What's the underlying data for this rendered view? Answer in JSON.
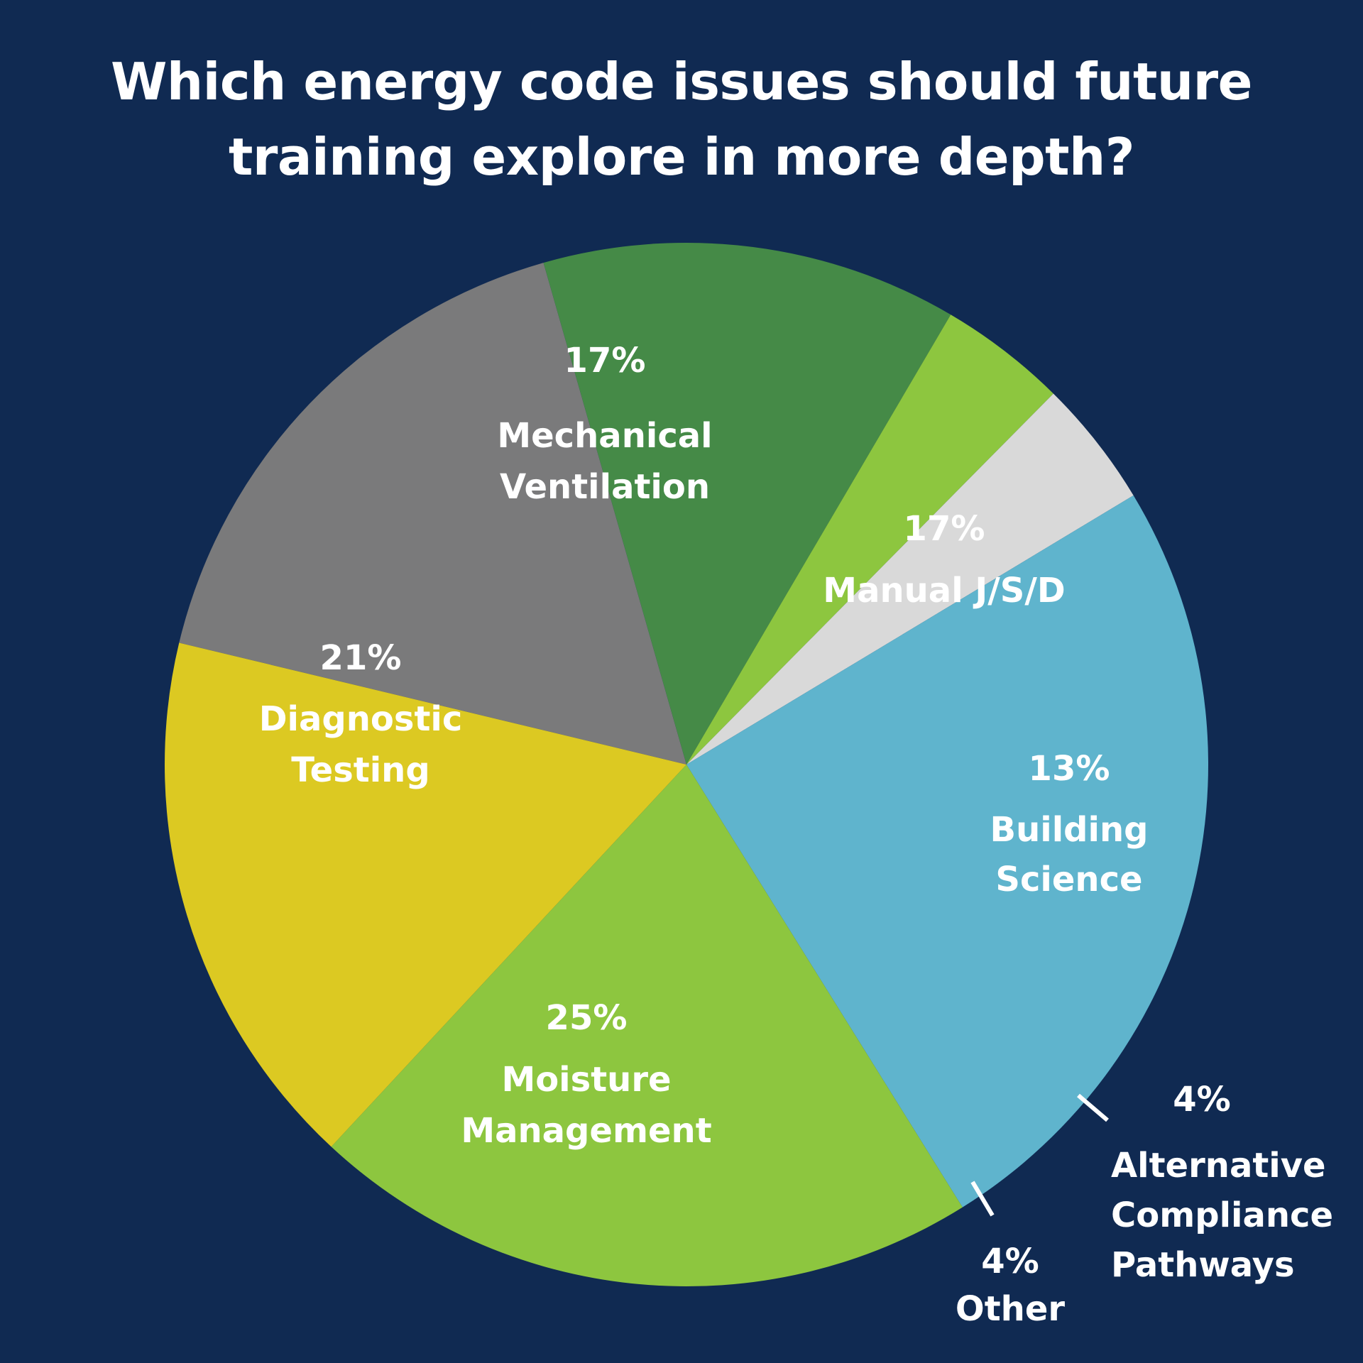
{
  "chart_data": {
    "type": "pie",
    "title_lines": [
      "Which energy code issues should future",
      "training explore in more depth?"
    ],
    "slices": [
      {
        "pct_label": "17%",
        "name_lines": [
          "Manual J/S/D"
        ],
        "value": 17,
        "color": "#7a7a7b"
      },
      {
        "pct_label": "13%",
        "name_lines": [
          "Building",
          "Science"
        ],
        "value": 13,
        "color": "#458a47"
      },
      {
        "pct_label": "4%",
        "name_lines": [
          "Alternative",
          "Compliance",
          "Pathways"
        ],
        "value": 4,
        "color": "#8dc63f"
      },
      {
        "pct_label": "4%",
        "name_lines": [
          "Other"
        ],
        "value": 4,
        "color": "#d9d9d9"
      },
      {
        "pct_label": "25%",
        "name_lines": [
          "Moisture",
          "Management"
        ],
        "value": 25,
        "color": "#5fb4cd"
      },
      {
        "pct_label": "21%",
        "name_lines": [
          "Diagnostic",
          "Testing"
        ],
        "value": 21,
        "color": "#8dc63f"
      },
      {
        "pct_label": "17%",
        "name_lines": [
          "Mechanical",
          "Ventilation"
        ],
        "value": 17,
        "color": "#dcc922"
      }
    ],
    "legend": "none"
  },
  "colors": {
    "background": "#102a52",
    "text": "#ffffff"
  }
}
